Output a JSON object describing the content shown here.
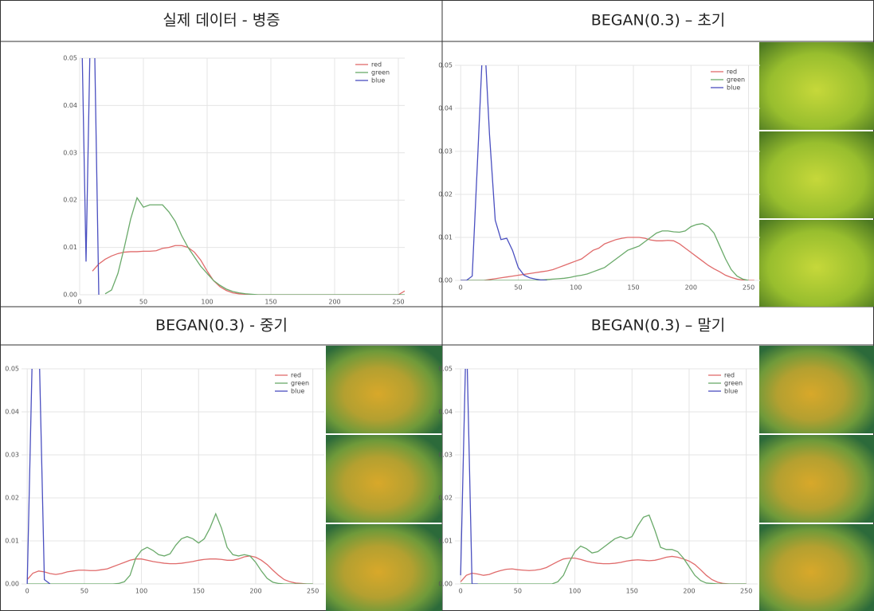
{
  "chart_data": [
    {
      "type": "line",
      "title": "실제 데이터 - 병증",
      "xlim": [
        0,
        255
      ],
      "ylim": [
        0,
        0.05
      ],
      "xticks": [
        0,
        50,
        100,
        150,
        200,
        250
      ],
      "yticks": [
        {
          "value": 0,
          "label": "0.00"
        },
        {
          "value": 0.01,
          "label": "0.01"
        },
        {
          "value": 0.02,
          "label": "0.02"
        },
        {
          "value": 0.03,
          "label": "0.03"
        },
        {
          "value": 0.04,
          "label": "0.04"
        },
        {
          "value": 0.05,
          "label": "0.05"
        }
      ],
      "grid": true,
      "legend": "upper right",
      "x": [
        0,
        5,
        10,
        15,
        20,
        25,
        30,
        35,
        40,
        45,
        50,
        55,
        60,
        65,
        70,
        75,
        80,
        85,
        90,
        95,
        100,
        105,
        110,
        115,
        120,
        125,
        130,
        135,
        140,
        145,
        150,
        155,
        160,
        165,
        170,
        175,
        180,
        185,
        190,
        195,
        200,
        205,
        210,
        215,
        220,
        225,
        230,
        235,
        240,
        245,
        250,
        255
      ],
      "series": [
        {
          "name": "red",
          "color": "#e06b6b",
          "values": [
            null,
            null,
            0.005,
            0.0065,
            0.0075,
            0.0082,
            0.0087,
            0.009,
            0.0091,
            0.0091,
            0.0092,
            0.0092,
            0.0093,
            0.0098,
            0.01,
            0.0104,
            0.0104,
            0.01,
            0.009,
            0.0073,
            0.005,
            0.003,
            0.0017,
            0.0009,
            0.0004,
            0.0002,
            0.0001,
            0,
            0,
            0,
            0,
            0,
            0,
            0,
            0,
            0,
            0,
            0,
            0,
            0,
            0,
            0,
            0,
            0,
            0,
            0,
            0,
            0,
            0,
            0,
            0,
            0.0008
          ]
        },
        {
          "name": "green",
          "color": "#6aaa6a",
          "values": [
            null,
            null,
            null,
            null,
            0.0002,
            0.001,
            0.0045,
            0.01,
            0.016,
            0.0205,
            0.0185,
            0.019,
            0.019,
            0.019,
            0.0175,
            0.0155,
            0.0125,
            0.01,
            0.008,
            0.006,
            0.0045,
            0.003,
            0.002,
            0.0012,
            0.0007,
            0.0004,
            0.0002,
            0.0001,
            0,
            0,
            0,
            0,
            0,
            0,
            0,
            0,
            0,
            0,
            0,
            0,
            0,
            0,
            0,
            0,
            0,
            0,
            0,
            0,
            0,
            0,
            0,
            0
          ]
        },
        {
          "name": "blue",
          "color": "#4a4fc0",
          "values": [
            0.08,
            0.007,
            0.08,
            0,
            null,
            null,
            null,
            null,
            null,
            null,
            null,
            null,
            null,
            null,
            null,
            null,
            null,
            null,
            null,
            null,
            null,
            null,
            null,
            null,
            null,
            null,
            null,
            null,
            null,
            null,
            null,
            null,
            null,
            null,
            null,
            null,
            null,
            null,
            null,
            null,
            null,
            null,
            null,
            null,
            null,
            null,
            null,
            null,
            null,
            null,
            null,
            null
          ]
        }
      ]
    },
    {
      "type": "line",
      "title": "BEGAN(0.3) – 초기",
      "xlim": [
        -5,
        260
      ],
      "ylim": [
        0,
        0.05
      ],
      "xticks": [
        0,
        50,
        100,
        150,
        200,
        250
      ],
      "yticks": [
        {
          "value": 0,
          "label": "0.00"
        },
        {
          "value": 0.01,
          "label": "0.01"
        },
        {
          "value": 0.02,
          "label": "0.02"
        },
        {
          "value": 0.03,
          "label": "0.03"
        },
        {
          "value": 0.04,
          "label": "0.04"
        },
        {
          "value": 0.05,
          "label": "0.05"
        }
      ],
      "grid": true,
      "legend": "upper right",
      "x": [
        0,
        5,
        10,
        15,
        20,
        25,
        30,
        35,
        40,
        45,
        50,
        55,
        60,
        65,
        70,
        75,
        80,
        85,
        90,
        95,
        100,
        105,
        110,
        115,
        120,
        125,
        130,
        135,
        140,
        145,
        150,
        155,
        160,
        165,
        170,
        175,
        180,
        185,
        190,
        195,
        200,
        205,
        210,
        215,
        220,
        225,
        230,
        235,
        240,
        245,
        250,
        255
      ],
      "series": [
        {
          "name": "red",
          "color": "#e06b6b",
          "values": [
            0,
            0,
            0,
            0,
            0,
            0.0002,
            0.0004,
            0.0006,
            0.0008,
            0.001,
            0.0012,
            0.0014,
            0.0016,
            0.0018,
            0.002,
            0.0022,
            0.0025,
            0.003,
            0.0035,
            0.004,
            0.0045,
            0.005,
            0.006,
            0.007,
            0.0075,
            0.0085,
            0.009,
            0.0095,
            0.0098,
            0.01,
            0.01,
            0.01,
            0.0098,
            0.0094,
            0.0092,
            0.0092,
            0.0093,
            0.0092,
            0.0085,
            0.0075,
            0.0065,
            0.0055,
            0.0045,
            0.0035,
            0.0027,
            0.002,
            0.0012,
            0.0007,
            0.0003,
            0.0001,
            0,
            0
          ]
        },
        {
          "name": "green",
          "color": "#6aaa6a",
          "values": [
            0,
            0,
            0,
            0,
            0,
            0,
            0,
            0,
            0,
            0,
            0,
            0,
            0,
            0,
            0.0001,
            0.0002,
            0.0003,
            0.0004,
            0.0005,
            0.0007,
            0.001,
            0.0012,
            0.0015,
            0.002,
            0.0025,
            0.003,
            0.004,
            0.005,
            0.006,
            0.007,
            0.0075,
            0.008,
            0.009,
            0.01,
            0.011,
            0.0115,
            0.0115,
            0.0113,
            0.0112,
            0.0115,
            0.0125,
            0.013,
            0.0132,
            0.0125,
            0.011,
            0.008,
            0.005,
            0.0025,
            0.001,
            0.0003,
            0,
            null
          ]
        },
        {
          "name": "blue",
          "color": "#4a4fc0",
          "values": [
            0,
            0,
            0.001,
            0.03,
            0.06,
            0.034,
            0.014,
            0.0095,
            0.0098,
            0.007,
            0.003,
            0.0012,
            0.0006,
            0.0003,
            0.0001,
            0,
            null,
            null,
            null,
            null,
            null,
            null,
            null,
            null,
            null,
            null,
            null,
            null,
            null,
            null,
            null,
            null,
            null,
            null,
            null,
            null,
            null,
            null,
            null,
            null,
            null,
            null,
            null,
            null,
            null,
            null,
            null,
            null,
            null,
            null,
            null,
            null
          ]
        }
      ]
    },
    {
      "type": "line",
      "title": "BEGAN(0.3) - 중기",
      "xlim": [
        -5,
        260
      ],
      "ylim": [
        0,
        0.05
      ],
      "xticks": [
        0,
        50,
        100,
        150,
        200,
        250
      ],
      "yticks": [
        {
          "value": 0,
          "label": "0.00"
        },
        {
          "value": 0.01,
          "label": "0.01"
        },
        {
          "value": 0.02,
          "label": "0.02"
        },
        {
          "value": 0.03,
          "label": "0.03"
        },
        {
          "value": 0.04,
          "label": "0.04"
        },
        {
          "value": 0.05,
          "label": "0.05"
        }
      ],
      "grid": true,
      "legend": "upper right",
      "x": [
        0,
        5,
        10,
        15,
        20,
        25,
        30,
        35,
        40,
        45,
        50,
        55,
        60,
        65,
        70,
        75,
        80,
        85,
        90,
        95,
        100,
        105,
        110,
        115,
        120,
        125,
        130,
        135,
        140,
        145,
        150,
        155,
        160,
        165,
        170,
        175,
        180,
        185,
        190,
        195,
        200,
        205,
        210,
        215,
        220,
        225,
        230,
        235,
        240,
        245,
        250,
        255
      ],
      "series": [
        {
          "name": "red",
          "color": "#e06b6b",
          "values": [
            0.001,
            0.0025,
            0.003,
            0.0028,
            0.0024,
            0.0022,
            0.0024,
            0.0028,
            0.003,
            0.0032,
            0.0032,
            0.0031,
            0.0031,
            0.0033,
            0.0035,
            0.004,
            0.0045,
            0.005,
            0.0055,
            0.0058,
            0.0058,
            0.0055,
            0.0052,
            0.005,
            0.0048,
            0.0047,
            0.0047,
            0.0048,
            0.005,
            0.0052,
            0.0055,
            0.0057,
            0.0058,
            0.0058,
            0.0057,
            0.0055,
            0.0055,
            0.0058,
            0.0063,
            0.0065,
            0.0062,
            0.0055,
            0.0045,
            0.0032,
            0.002,
            0.001,
            0.0005,
            0.0002,
            0.0001,
            0,
            0,
            null
          ]
        },
        {
          "name": "green",
          "color": "#6aaa6a",
          "values": [
            0,
            0,
            0,
            0,
            0,
            0,
            0,
            0,
            0,
            0,
            0,
            0,
            0,
            0,
            0,
            0,
            0.0001,
            0.0005,
            0.002,
            0.006,
            0.0078,
            0.0085,
            0.0078,
            0.0068,
            0.0065,
            0.007,
            0.009,
            0.0105,
            0.011,
            0.0105,
            0.0095,
            0.0105,
            0.013,
            0.0163,
            0.013,
            0.0085,
            0.0068,
            0.0065,
            0.0068,
            0.0065,
            0.005,
            0.003,
            0.0013,
            0.0004,
            0.0001,
            0,
            0,
            0,
            0,
            0,
            0,
            null
          ]
        },
        {
          "name": "blue",
          "color": "#4a4fc0",
          "values": [
            0,
            0.06,
            0.06,
            0.001,
            0,
            null,
            null,
            null,
            null,
            null,
            null,
            null,
            null,
            null,
            null,
            null,
            null,
            null,
            null,
            null,
            null,
            null,
            null,
            null,
            null,
            null,
            null,
            null,
            null,
            null,
            null,
            null,
            null,
            null,
            null,
            null,
            null,
            null,
            null,
            null,
            null,
            null,
            null,
            null,
            null,
            null,
            null,
            null,
            null,
            null,
            null,
            null
          ]
        }
      ]
    },
    {
      "type": "line",
      "title": "BEGAN(0.3) – 말기",
      "xlim": [
        -5,
        260
      ],
      "ylim": [
        0,
        0.05
      ],
      "xticks": [
        0,
        50,
        100,
        150,
        200,
        250
      ],
      "yticks": [
        {
          "value": 0,
          "label": "0.00"
        },
        {
          "value": 0.01,
          "label": "0.01"
        },
        {
          "value": 0.02,
          "label": "0.02"
        },
        {
          "value": 0.03,
          "label": "0.03"
        },
        {
          "value": 0.04,
          "label": "0.04"
        },
        {
          "value": 0.05,
          "label": "0.05"
        }
      ],
      "grid": true,
      "legend": "upper right",
      "x": [
        0,
        5,
        10,
        15,
        20,
        25,
        30,
        35,
        40,
        45,
        50,
        55,
        60,
        65,
        70,
        75,
        80,
        85,
        90,
        95,
        100,
        105,
        110,
        115,
        120,
        125,
        130,
        135,
        140,
        145,
        150,
        155,
        160,
        165,
        170,
        175,
        180,
        185,
        190,
        195,
        200,
        205,
        210,
        215,
        220,
        225,
        230,
        235,
        240,
        245,
        250,
        255
      ],
      "series": [
        {
          "name": "red",
          "color": "#e06b6b",
          "values": [
            0.0005,
            0.002,
            0.0025,
            0.0023,
            0.002,
            0.0022,
            0.0027,
            0.0031,
            0.0034,
            0.0035,
            0.0033,
            0.0032,
            0.0031,
            0.0032,
            0.0034,
            0.0038,
            0.0045,
            0.0052,
            0.0058,
            0.006,
            0.006,
            0.0057,
            0.0053,
            0.005,
            0.0048,
            0.0047,
            0.0047,
            0.0048,
            0.005,
            0.0053,
            0.0055,
            0.0056,
            0.0055,
            0.0054,
            0.0055,
            0.0058,
            0.0062,
            0.0064,
            0.0062,
            0.0058,
            0.0053,
            0.0045,
            0.0033,
            0.002,
            0.001,
            0.0004,
            0.0001,
            0,
            0,
            0,
            0,
            null
          ]
        },
        {
          "name": "green",
          "color": "#6aaa6a",
          "values": [
            0,
            0,
            0,
            0,
            0,
            0,
            0,
            0,
            0,
            0,
            0,
            0,
            0,
            0,
            0,
            0,
            0,
            0.0005,
            0.002,
            0.005,
            0.0075,
            0.0088,
            0.0082,
            0.0072,
            0.0075,
            0.0085,
            0.0095,
            0.0105,
            0.011,
            0.0105,
            0.011,
            0.0135,
            0.0155,
            0.016,
            0.0125,
            0.0085,
            0.008,
            0.008,
            0.0075,
            0.006,
            0.004,
            0.002,
            0.0008,
            0.0002,
            0.0001,
            0,
            0,
            0,
            0,
            0,
            0,
            null
          ]
        },
        {
          "name": "blue",
          "color": "#4a4fc0",
          "values": [
            0.002,
            0.06,
            0,
            0,
            null,
            null,
            null,
            null,
            null,
            null,
            null,
            null,
            null,
            null,
            null,
            null,
            null,
            null,
            null,
            null,
            null,
            null,
            null,
            null,
            null,
            null,
            null,
            null,
            null,
            null,
            null,
            null,
            null,
            null,
            null,
            null,
            null,
            null,
            null,
            null,
            null,
            null,
            null,
            null,
            null,
            null,
            null,
            null,
            null,
            null,
            null,
            null
          ]
        }
      ]
    }
  ]
}
